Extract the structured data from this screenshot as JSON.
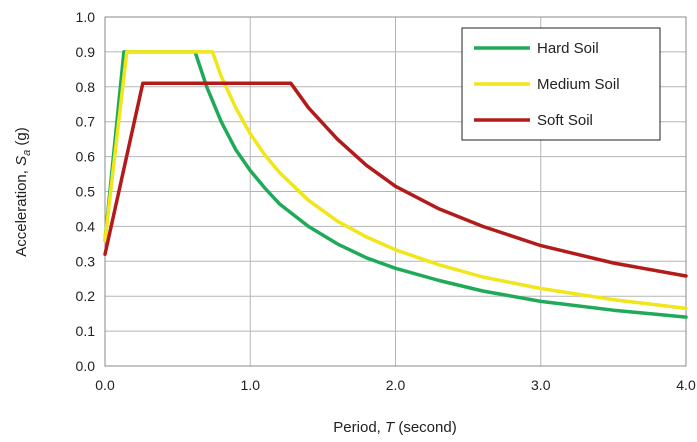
{
  "chart_data": {
    "type": "line",
    "xlabel": {
      "prefix": "Period, ",
      "var": "T",
      "suffix": " (second)"
    },
    "ylabel": {
      "prefix": "Acceleration, ",
      "var": "S",
      "sub": "a",
      "suffix": " (g)"
    },
    "xlim": [
      0,
      4
    ],
    "ylim": [
      0,
      1
    ],
    "xticks": [
      0,
      1,
      2,
      3,
      4
    ],
    "xtick_labels": [
      "0.0",
      "1.0",
      "2.0",
      "3.0",
      "4.0"
    ],
    "yticks": [
      0,
      0.1,
      0.2,
      0.3,
      0.4,
      0.5,
      0.6,
      0.7,
      0.8,
      0.9,
      1.0
    ],
    "ytick_labels": [
      "0.0",
      "0.1",
      "0.2",
      "0.3",
      "0.4",
      "0.5",
      "0.6",
      "0.7",
      "0.8",
      "0.9",
      "1.0"
    ],
    "grid": true,
    "legend_position": "top-right",
    "series": [
      {
        "name": "Hard Soil",
        "color": "#1faa5a",
        "x": [
          0,
          0.13,
          0.62,
          0.7,
          0.8,
          0.9,
          1.0,
          1.1,
          1.2,
          1.4,
          1.6,
          1.8,
          2.0,
          2.3,
          2.6,
          3.0,
          3.5,
          4.0
        ],
        "y": [
          0.36,
          0.9,
          0.9,
          0.8,
          0.7,
          0.62,
          0.56,
          0.51,
          0.465,
          0.4,
          0.35,
          0.31,
          0.28,
          0.245,
          0.215,
          0.185,
          0.16,
          0.14
        ]
      },
      {
        "name": "Medium Soil",
        "color": "#f0e619",
        "x": [
          0,
          0.15,
          0.74,
          0.8,
          0.9,
          1.0,
          1.1,
          1.2,
          1.4,
          1.6,
          1.8,
          2.0,
          2.3,
          2.6,
          3.0,
          3.5,
          4.0
        ],
        "y": [
          0.36,
          0.9,
          0.9,
          0.83,
          0.74,
          0.665,
          0.605,
          0.555,
          0.475,
          0.415,
          0.37,
          0.333,
          0.29,
          0.255,
          0.222,
          0.19,
          0.165
        ]
      },
      {
        "name": "Soft Soil",
        "color": "#b31b1b",
        "x": [
          0,
          0.26,
          1.28,
          1.4,
          1.6,
          1.8,
          2.0,
          2.3,
          2.6,
          3.0,
          3.5,
          4.0
        ],
        "y": [
          0.32,
          0.81,
          0.81,
          0.74,
          0.65,
          0.575,
          0.515,
          0.45,
          0.4,
          0.345,
          0.295,
          0.258
        ]
      }
    ]
  }
}
